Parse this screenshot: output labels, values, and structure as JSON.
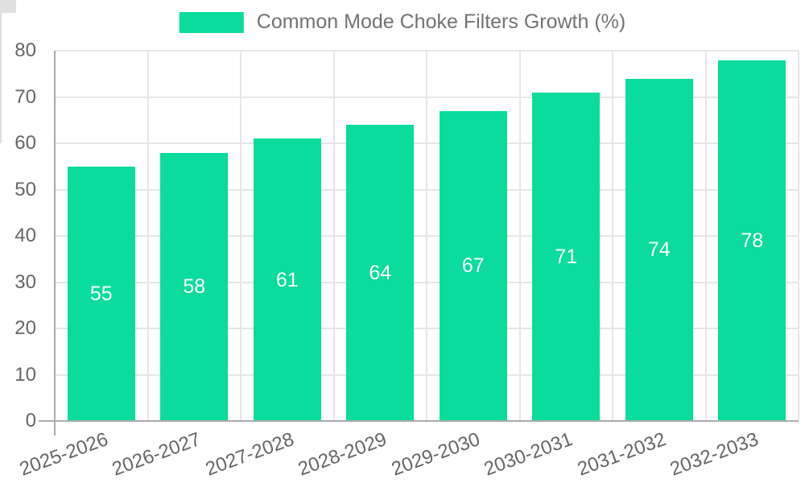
{
  "legend": {
    "label": "Common Mode Choke Filters Growth (%)"
  },
  "chart_data": {
    "type": "bar",
    "title": "Common Mode Choke Filters Growth (%)",
    "categories": [
      "2025-2026",
      "2026-2027",
      "2027-2028",
      "2028-2029",
      "2029-2030",
      "2030-2031",
      "2031-2032",
      "2032-2033"
    ],
    "values": [
      55,
      58,
      61,
      64,
      67,
      71,
      74,
      78
    ],
    "series": [
      {
        "name": "Common Mode Choke Filters Growth (%)",
        "values": [
          55,
          58,
          61,
          64,
          67,
          71,
          74,
          78
        ]
      }
    ],
    "xlabel": "",
    "ylabel": "",
    "ylim": [
      0,
      80
    ],
    "yticks": [
      0,
      10,
      20,
      30,
      40,
      50,
      60,
      70,
      80
    ],
    "grid": true,
    "legend_position": "top",
    "bar_labels_visible": true,
    "colors": {
      "bar": "#0bdc9b",
      "bar_label_text": "#ffffff",
      "axis_text": "#666666",
      "legend_text": "#737373",
      "gridline": "#e6e6e6",
      "axis_line": "#ababab"
    }
  }
}
